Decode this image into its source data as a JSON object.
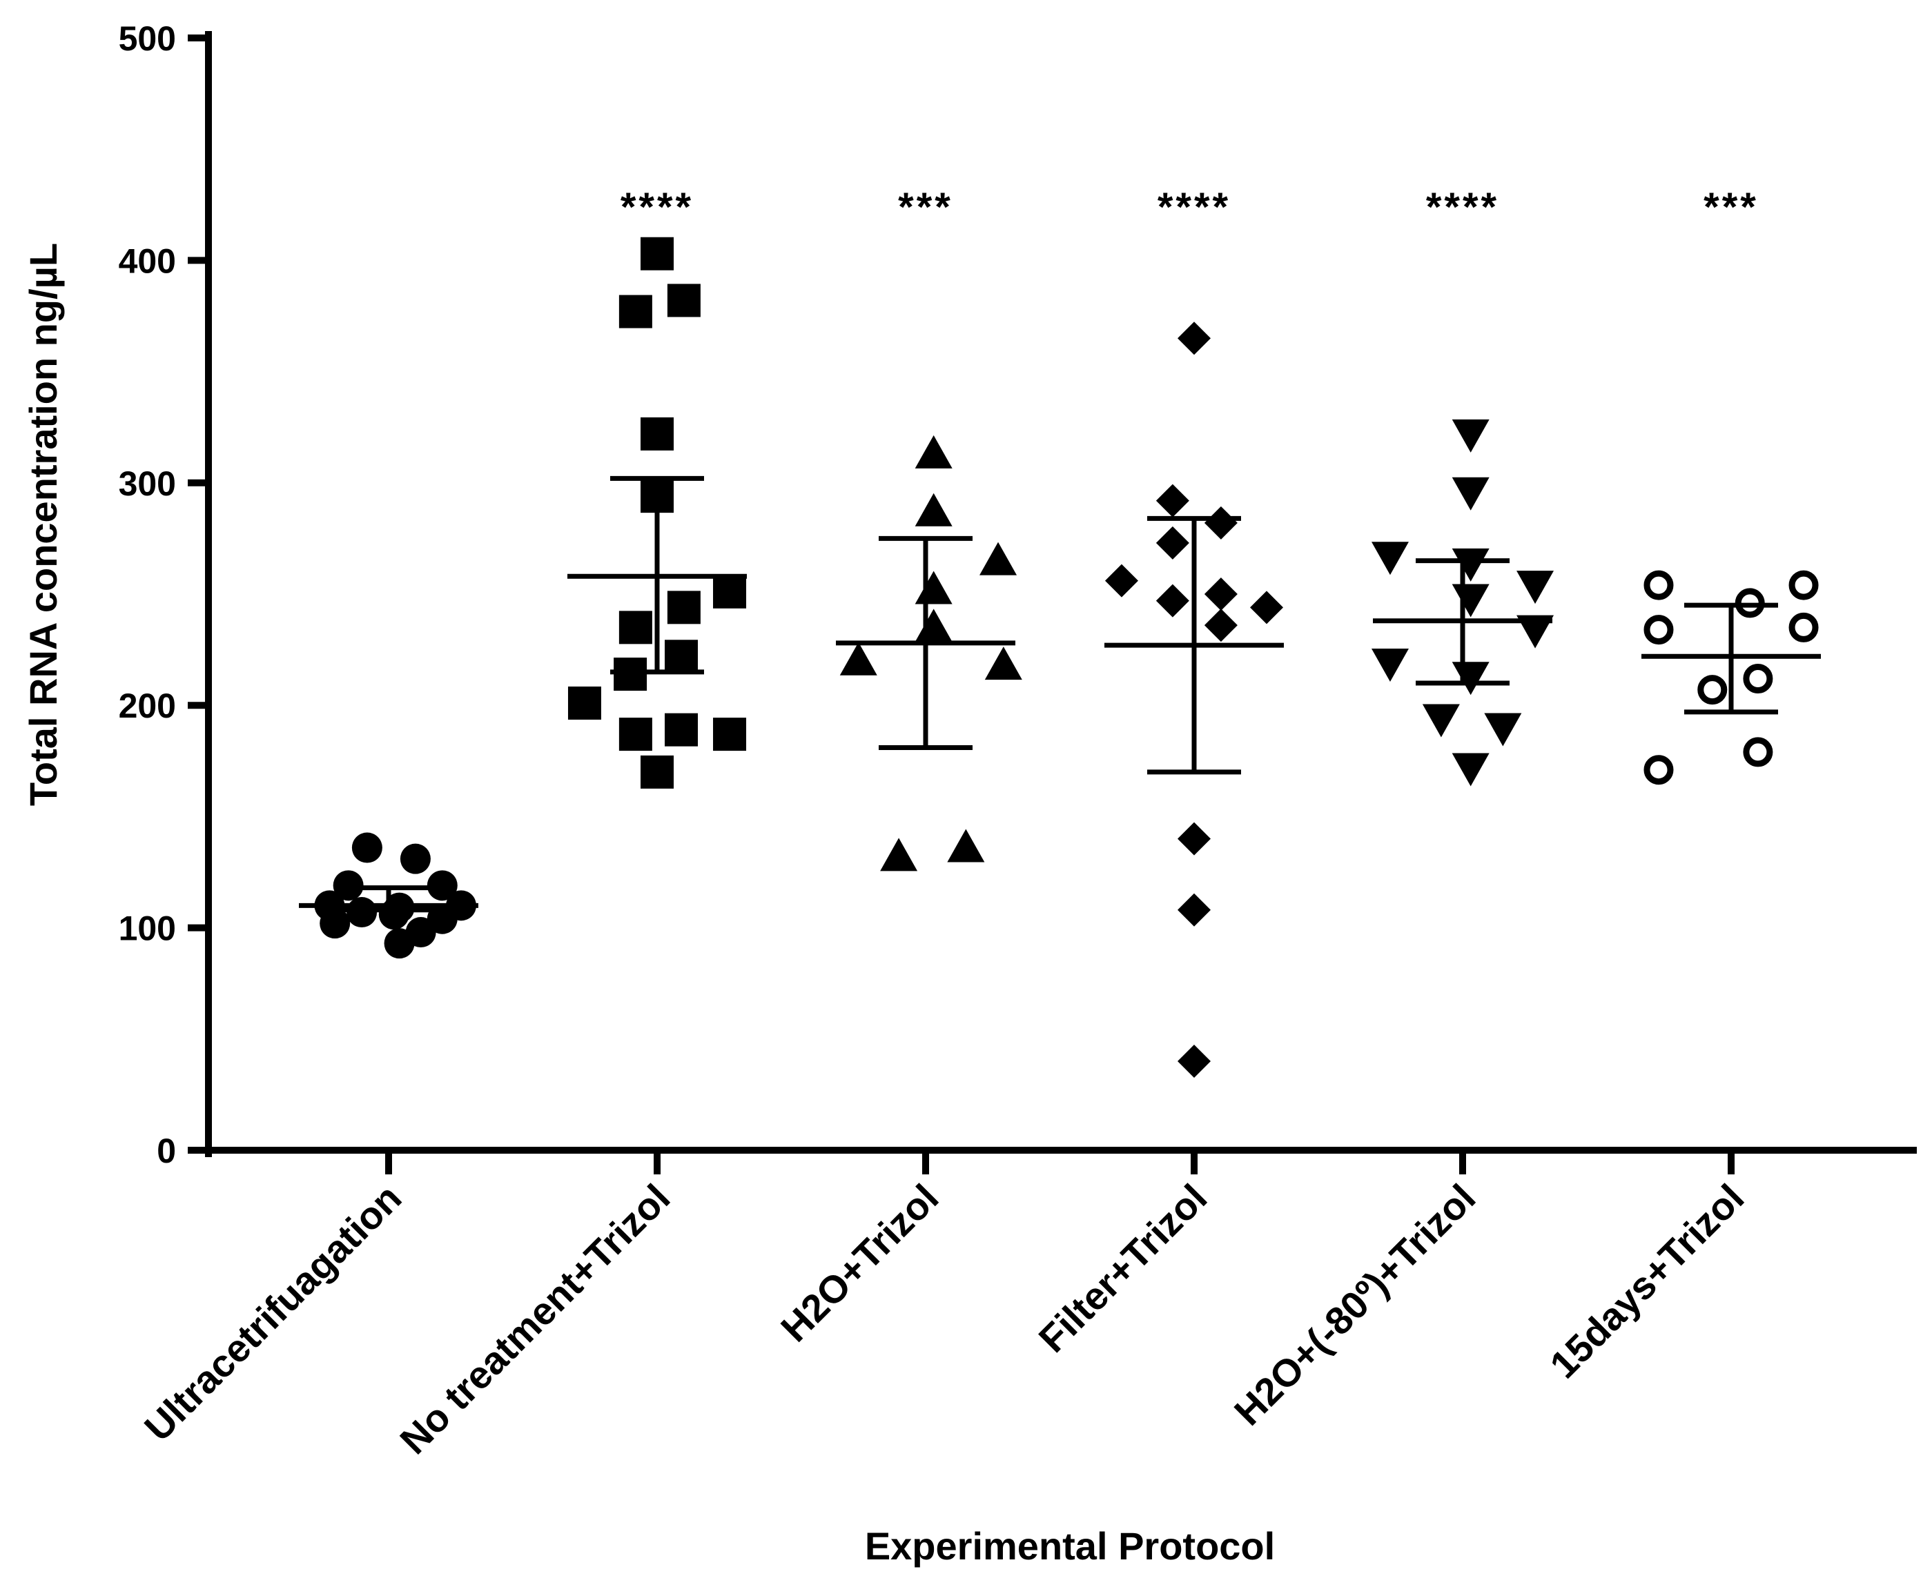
{
  "chart_data": {
    "type": "scatter",
    "xlabel": "Experimental Protocol",
    "ylabel": "Total RNA concentration  ng/µL",
    "ylim": [
      0,
      500
    ],
    "yticks": [
      0,
      100,
      200,
      300,
      400,
      500
    ],
    "ytick_labels": [
      "0",
      "100",
      "200",
      "300",
      "400",
      "500"
    ],
    "grid": false,
    "categories": [
      "Ultracetrifuagation",
      "No treatment+Trizol",
      "H2O+Trizol",
      "Filter+Trizol",
      "H2O+(-80º)+Trizol",
      "15days+Trizol"
    ],
    "series": [
      {
        "name": "Ultracetrifuagation",
        "marker": "circle-filled",
        "significance": "",
        "mean": 110,
        "err_low": 108,
        "err_high": 118,
        "points": [
          [
            -0.22,
            110
          ],
          [
            -0.2,
            102
          ],
          [
            -0.08,
            136
          ],
          [
            -0.1,
            107
          ],
          [
            0.02,
            106
          ],
          [
            0.04,
            109
          ],
          [
            0.04,
            93
          ],
          [
            0.1,
            131
          ],
          [
            0.12,
            98
          ],
          [
            0.2,
            119
          ],
          [
            0.27,
            110
          ],
          [
            0.2,
            104
          ],
          [
            -0.15,
            119
          ]
        ]
      },
      {
        "name": "No treatment+Trizol",
        "marker": "square-filled",
        "significance": "****",
        "mean": 258,
        "err_low": 215,
        "err_high": 302,
        "points": [
          [
            0.0,
            403
          ],
          [
            -0.08,
            377
          ],
          [
            0.1,
            382
          ],
          [
            0.0,
            322
          ],
          [
            0.0,
            294
          ],
          [
            -0.08,
            235
          ],
          [
            -0.1,
            214
          ],
          [
            0.1,
            244
          ],
          [
            0.09,
            222
          ],
          [
            0.27,
            251
          ],
          [
            -0.27,
            201
          ],
          [
            -0.08,
            187
          ],
          [
            0.09,
            189
          ],
          [
            0.27,
            187
          ],
          [
            0.0,
            170
          ]
        ]
      },
      {
        "name": "H2O+Trizol",
        "marker": "triangle-up",
        "significance": "***",
        "mean": 228,
        "err_low": 181,
        "err_high": 275,
        "points": [
          [
            0.03,
            313
          ],
          [
            0.03,
            287
          ],
          [
            0.03,
            252
          ],
          [
            0.03,
            235
          ],
          [
            -0.25,
            220
          ],
          [
            0.27,
            265
          ],
          [
            0.29,
            218
          ],
          [
            -0.1,
            132
          ],
          [
            0.15,
            136
          ]
        ]
      },
      {
        "name": "Filter+Trizol",
        "marker": "diamond",
        "significance": "****",
        "mean": 227,
        "err_low": 170,
        "err_high": 284,
        "points": [
          [
            0.0,
            365
          ],
          [
            -0.08,
            292
          ],
          [
            -0.08,
            273
          ],
          [
            0.1,
            282
          ],
          [
            -0.27,
            256
          ],
          [
            -0.08,
            247
          ],
          [
            0.1,
            250
          ],
          [
            0.27,
            244
          ],
          [
            0.1,
            236
          ],
          [
            0.0,
            140
          ],
          [
            0.0,
            108
          ],
          [
            0.0,
            40
          ]
        ]
      },
      {
        "name": "H2O+(-80º)+Trizol",
        "marker": "triangle-down",
        "significance": "****",
        "mean": 238,
        "err_low": 210,
        "err_high": 265,
        "points": [
          [
            0.03,
            322
          ],
          [
            0.03,
            296
          ],
          [
            -0.27,
            267
          ],
          [
            0.03,
            264
          ],
          [
            0.03,
            248
          ],
          [
            0.27,
            254
          ],
          [
            0.27,
            234
          ],
          [
            -0.27,
            219
          ],
          [
            0.03,
            213
          ],
          [
            -0.08,
            194
          ],
          [
            0.15,
            190
          ],
          [
            0.03,
            172
          ]
        ]
      },
      {
        "name": "15days+Trizol",
        "marker": "circle-open",
        "significance": "***",
        "mean": 222,
        "err_low": 197,
        "err_high": 245,
        "points": [
          [
            -0.27,
            254
          ],
          [
            -0.27,
            234
          ],
          [
            0.07,
            246
          ],
          [
            0.27,
            254
          ],
          [
            0.27,
            235
          ],
          [
            -0.07,
            207
          ],
          [
            0.1,
            212
          ],
          [
            -0.27,
            171
          ],
          [
            0.1,
            179
          ]
        ]
      }
    ]
  }
}
